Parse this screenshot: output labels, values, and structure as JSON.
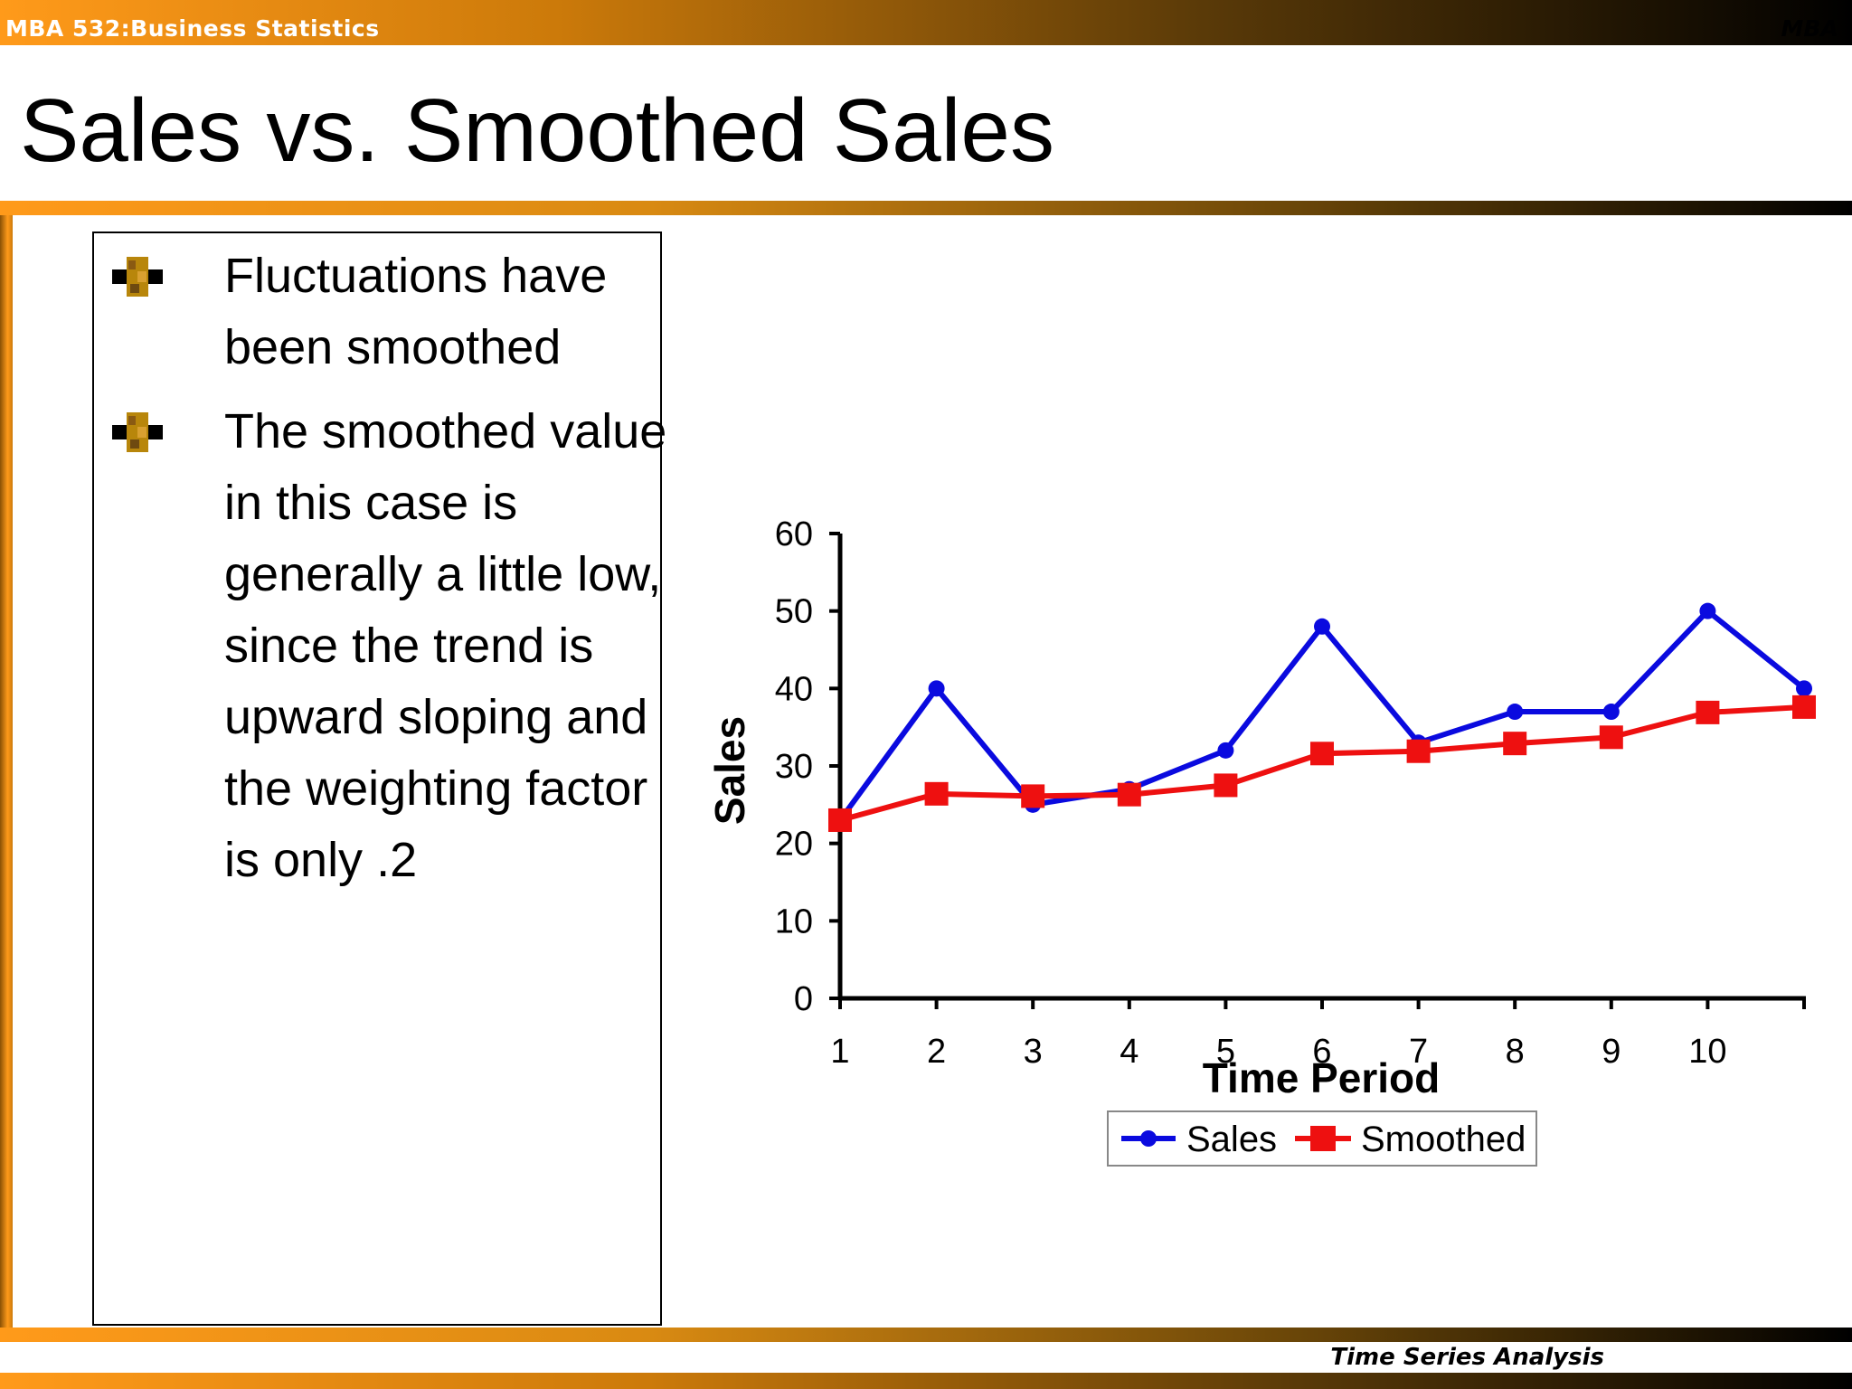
{
  "header": {
    "course": "MBA 532:Business Statistics",
    "course_right": "MBA - 2"
  },
  "slide": {
    "title": "Sales vs. Smoothed Sales",
    "bullets": [
      "Fluctuations have been smoothed",
      "The smoothed value in this case is generally a little low, since the trend is upward sloping and the weighting factor is only .2"
    ],
    "footer": "Time Series Analysis"
  },
  "colors": {
    "accent": "#ff9a1a",
    "sales": "#0a0adf",
    "smoothed": "#ee1010"
  },
  "chart_data": {
    "type": "line",
    "x": [
      1,
      2,
      3,
      4,
      5,
      6,
      7,
      8,
      9,
      10,
      11
    ],
    "x_tick_labels": [
      "1",
      "2",
      "3",
      "4",
      "5",
      "6",
      "7",
      "8",
      "9",
      "10"
    ],
    "series": [
      {
        "name": "Sales",
        "marker": "circle",
        "color": "#0a0adf",
        "values": [
          23,
          40,
          25,
          27,
          32,
          48,
          33,
          37,
          37,
          50,
          40
        ]
      },
      {
        "name": "Smoothed",
        "marker": "square",
        "color": "#ee1010",
        "values": [
          23,
          26.4,
          26.1,
          26.3,
          27.5,
          31.6,
          31.9,
          32.9,
          33.7,
          36.9,
          37.6
        ]
      }
    ],
    "xlabel": "Time Period",
    "ylabel": "Sales",
    "ylim": [
      0,
      60
    ],
    "y_ticks": [
      0,
      10,
      20,
      30,
      40,
      50,
      60
    ],
    "grid": false,
    "legend": "bottom"
  }
}
